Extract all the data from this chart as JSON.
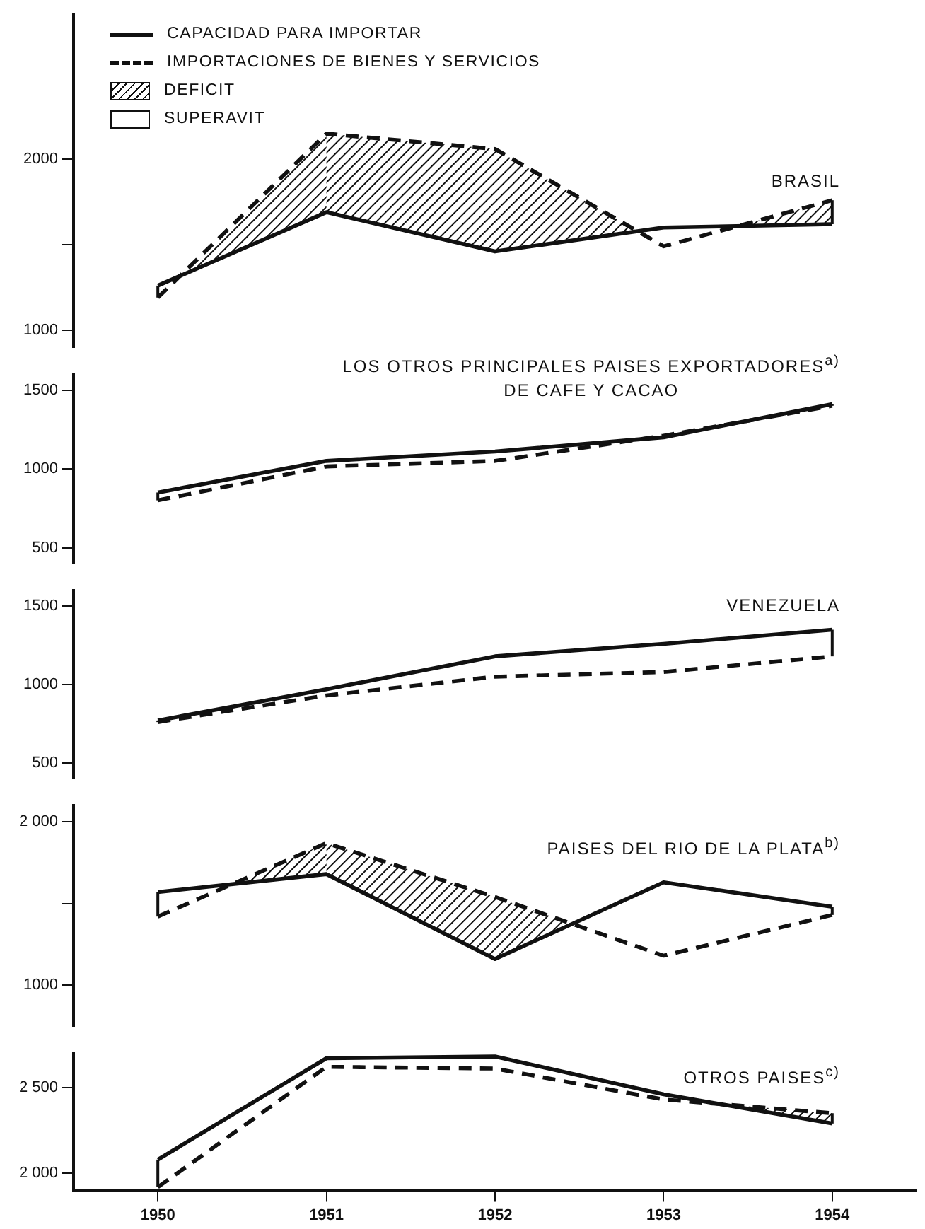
{
  "chart_data": [
    {
      "type": "line",
      "title": "BRASIL",
      "categories": [
        "1950",
        "1951",
        "1952",
        "1953",
        "1954"
      ],
      "series": [
        {
          "name": "CAPACIDAD PARA IMPORTAR",
          "color": "#111111",
          "line_style": "solid",
          "values": [
            1260,
            1690,
            1460,
            1600,
            1620
          ]
        },
        {
          "name": "IMPORTACIONES DE BIENES Y SERVICIOS",
          "color": "#111111",
          "line_style": "dashed",
          "values": [
            1190,
            2150,
            2060,
            1490,
            1760
          ]
        }
      ],
      "annotations": [
        "DEFICIT",
        "SUPERAVIT"
      ],
      "legend": "top left",
      "marker": "none",
      "ylim": [
        900,
        2850
      ],
      "yticks": [
        1000,
        {
          "value": 1500,
          "label": null
        },
        2000
      ],
      "tick_labels": "y",
      "grid": false
    },
    {
      "type": "line",
      "title": "LOS OTROS PRINCIPALES PAISES EXPORTADORES$^{a)}$\nDE CAFE Y CACAO",
      "categories": [
        "1950",
        "1951",
        "1952",
        "1953",
        "1954"
      ],
      "series": [
        {
          "color": "#111111",
          "line_style": "solid",
          "values": [
            850,
            1050,
            1110,
            1200,
            1410
          ]
        },
        {
          "color": "#111111",
          "line_style": "dashed",
          "values": [
            800,
            1015,
            1050,
            1210,
            1400
          ]
        }
      ],
      "marker": "none",
      "ylim": [
        400,
        1600
      ],
      "yticks": [
        500,
        1000,
        1500
      ],
      "tick_labels": "y",
      "grid": false
    },
    {
      "type": "line",
      "title": "VENEZUELA",
      "categories": [
        "1950",
        "1951",
        "1952",
        "1953",
        "1954"
      ],
      "series": [
        {
          "color": "#111111",
          "line_style": "solid",
          "values": [
            770,
            970,
            1180,
            1260,
            1350
          ]
        },
        {
          "color": "#111111",
          "line_style": "dashed",
          "values": [
            760,
            930,
            1050,
            1080,
            1180
          ]
        }
      ],
      "marker": "none",
      "ylim": [
        400,
        1600
      ],
      "yticks": [
        500,
        1000,
        1500
      ],
      "tick_labels": "y",
      "grid": false
    },
    {
      "type": "line",
      "title": "PAISES DEL RIO DE LA PLATA$^{b)}$",
      "categories": [
        "1950",
        "1951",
        "1952",
        "1953",
        "1954"
      ],
      "series": [
        {
          "color": "#111111",
          "line_style": "solid",
          "values": [
            1570,
            1680,
            1160,
            1630,
            1480
          ]
        },
        {
          "color": "#111111",
          "line_style": "dashed",
          "values": [
            1420,
            1870,
            1540,
            1180,
            1430
          ]
        }
      ],
      "marker": "none",
      "ylim": [
        750,
        2100
      ],
      "yticks": [
        1000,
        {
          "value": 1500,
          "label": null
        },
        {
          "value": 2000,
          "label": "2 000"
        }
      ],
      "tick_labels": "y",
      "grid": false
    },
    {
      "type": "line",
      "title": "OTROS PAISES$^{c)}$",
      "categories": [
        "1950",
        "1951",
        "1952",
        "1953",
        "1954"
      ],
      "series": [
        {
          "color": "#111111",
          "line_style": "solid",
          "values": [
            2080,
            2670,
            2680,
            2460,
            2290
          ]
        },
        {
          "color": "#111111",
          "line_style": "dashed",
          "values": [
            1920,
            2620,
            2610,
            2430,
            2350
          ]
        }
      ],
      "marker": "none",
      "ylim": [
        1900,
        2700
      ],
      "yticks": [
        {
          "value": 2000,
          "label": "2 000"
        },
        {
          "value": 2500,
          "label": "2 500"
        }
      ],
      "grid": false
    }
  ]
}
